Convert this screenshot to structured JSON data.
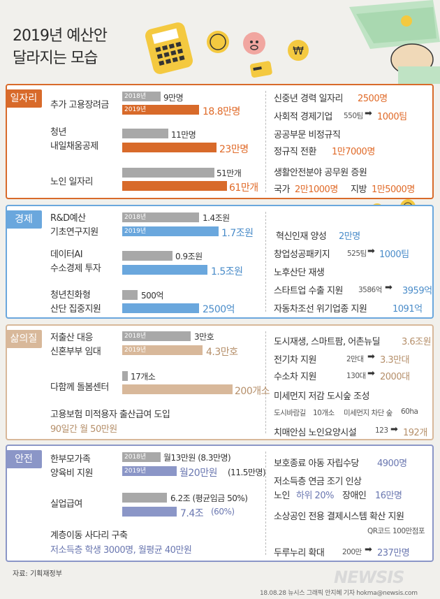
{
  "title": {
    "line1": "2019년 예산안",
    "line2": "달라지는 모습"
  },
  "colors": {
    "orange": "#d86a2a",
    "blue": "#6aa7dd",
    "tan": "#d8b89a",
    "navy": "#8b96c7",
    "gray": "#a8a8a8"
  },
  "chart_data": {
    "type": "bar",
    "title": "2019년 예산안 달라지는 모습",
    "sections": [
      {
        "name": "일자리",
        "left": [
          {
            "label": "추가 고용장려금",
            "series": [
              {
                "name": "2018년",
                "value": 9,
                "unit": "만명",
                "text": "9만명"
              },
              {
                "name": "2019년",
                "value": 18.8,
                "unit": "만명",
                "text": "18.8만명"
              }
            ]
          },
          {
            "label": "청년 내일채움공제",
            "series": [
              {
                "name": "2018년",
                "value": 11,
                "unit": "만명",
                "text": "11만명"
              },
              {
                "name": "2019년",
                "value": 23,
                "unit": "만명",
                "text": "23만명"
              }
            ]
          },
          {
            "label": "노인 일자리",
            "series": [
              {
                "name": "2018년",
                "value": 51,
                "unit": "만개",
                "text": "51만개"
              },
              {
                "name": "2019년",
                "value": 61,
                "unit": "만개",
                "text": "61만개"
              }
            ]
          }
        ]
      },
      {
        "name": "경제",
        "left": [
          {
            "label": "R&D예산 기초연구지원",
            "series": [
              {
                "name": "2018년",
                "value": 1.4,
                "unit": "조원",
                "text": "1.4조원"
              },
              {
                "name": "2019년",
                "value": 1.7,
                "unit": "조원",
                "text": "1.7조원"
              }
            ]
          },
          {
            "label": "데이터AI 수소경제 투자",
            "series": [
              {
                "name": "2018년",
                "value": 0.9,
                "unit": "조원",
                "text": "0.9조원"
              },
              {
                "name": "2019년",
                "value": 1.5,
                "unit": "조원",
                "text": "1.5조원"
              }
            ]
          },
          {
            "label": "청년친화형 산단 집중지원",
            "series": [
              {
                "name": "2018년",
                "value": 500,
                "unit": "억",
                "text": "500억"
              },
              {
                "name": "2019년",
                "value": 2500,
                "unit": "억",
                "text": "2500억"
              }
            ]
          }
        ]
      },
      {
        "name": "삶의질",
        "left": [
          {
            "label": "저출산 대응 신혼부부 임대",
            "series": [
              {
                "name": "2018년",
                "value": 3,
                "unit": "만호",
                "text": "3만호"
              },
              {
                "name": "2019년",
                "value": 4.3,
                "unit": "만호",
                "text": "4.3만호"
              }
            ]
          },
          {
            "label": "다함께 돌봄센터",
            "series": [
              {
                "name": "2018년",
                "value": 17,
                "unit": "개소",
                "text": "17개소"
              },
              {
                "name": "2019년",
                "value": 200,
                "unit": "개소",
                "text": "200개소"
              }
            ]
          }
        ]
      },
      {
        "name": "안전",
        "left": [
          {
            "label": "한부모가족 양육비 지원",
            "series": [
              {
                "name": "2018년",
                "value": 13,
                "unit": "만원",
                "text": "월13만원 (8.3만명)"
              },
              {
                "name": "2019년",
                "value": 20,
                "unit": "만원",
                "text": "월20만원 (11.5만명)"
              }
            ]
          },
          {
            "label": "실업급여",
            "series": [
              {
                "name": "2018년",
                "value": 6.2,
                "unit": "조",
                "text": "6.2조 (평균임금 50%)"
              },
              {
                "name": "2019년",
                "value": 7.4,
                "unit": "조",
                "text": "7.4조 (60%)"
              }
            ]
          }
        ]
      }
    ]
  },
  "sections": {
    "s1": {
      "tag": "일자리",
      "left": {
        "r1": {
          "label": "추가 고용장려금",
          "y18": "2018년",
          "y19": "2019년",
          "v18": "9만명",
          "v19": "18.8만명"
        },
        "r2": {
          "label1": "청년",
          "label2": "내일채움공제",
          "v18": "11만명",
          "v19": "23만명"
        },
        "r3": {
          "label": "노인 일자리",
          "v18": "51만개",
          "v19": "61만개"
        }
      },
      "right": {
        "a1": "신중년 경력 일자리",
        "a2": "2500명",
        "b1": "사회적 경제기업",
        "b2": "550팀",
        "b3": "1000팀",
        "c1": "공공부문 비정규직",
        "c2": "정규직 전환",
        "c3": "1만7000명",
        "d1": "생활안전분야 공무원 증원",
        "d2": "국가",
        "d3": "2만1000명",
        "d4": "지방",
        "d5": "1만5000명"
      }
    },
    "s2": {
      "tag": "경제",
      "left": {
        "r1": {
          "label1": "R&D예산",
          "label2": "기초연구지원",
          "y18": "2018년",
          "y19": "2019년",
          "v18": "1.4조원",
          "v19": "1.7조원"
        },
        "r2": {
          "label1": "데이터AI",
          "label2": "수소경제 투자",
          "v18": "0.9조원",
          "v19": "1.5조원"
        },
        "r3": {
          "label1": "청년친화형",
          "label2": "산단 집중지원",
          "v18": "500억",
          "v19": "2500억"
        }
      },
      "right": {
        "a1": "혁신인재 양성",
        "a2": "2만명",
        "b1": "창업성공패키지",
        "b2": "525팀",
        "b3": "1000팀",
        "c1": "노후산단 재생",
        "d1": "스타트업 수출 지원",
        "d2": "3586억",
        "d3": "3959억",
        "e1": "자동차조선 위기업종 지원",
        "e2": "1091억"
      }
    },
    "s3": {
      "tag": "삶의질",
      "left": {
        "r1": {
          "label1": "저출산 대응",
          "label2": "신혼부부 임대",
          "y18": "2018년",
          "y19": "2019년",
          "v18": "3만호",
          "v19": "4.3만호"
        },
        "r2": {
          "label": "다함께 돌봄센터",
          "v18": "17개소",
          "v19": "200개소"
        },
        "r3": {
          "label1": "고용보험 미적용자 출산급여 도입",
          "label2": "90일간 월 50만원"
        }
      },
      "right": {
        "a1": "도시재생, 스마트팜, 어촌뉴딜",
        "a2": "3.6조원",
        "b1": "전기차 지원",
        "b2": "2만대",
        "b3": "3.3만대",
        "c1": "수소차 지원",
        "c2": "130대",
        "c3": "2000대",
        "d1": "미세먼지 저감 도시숲 조성",
        "e1": "도시바람길",
        "e2": "10개소",
        "e3": "미세먼지 차단 숲",
        "e4": "60ha",
        "f1": "치매안심 노인요양시설",
        "f2": "123",
        "f3": "192개"
      }
    },
    "s4": {
      "tag": "안전",
      "left": {
        "r1": {
          "label1": "한부모가족",
          "label2": "양육비 지원",
          "y18": "2018년",
          "y19": "2019년",
          "v18": "월13만원 (8.3만명)",
          "v19a": "월20만원",
          "v19b": "(11.5만명)"
        },
        "r2": {
          "label": "실업급여",
          "v18": "6.2조 (평균임금 50%)",
          "v19a": "7.4조",
          "v19b": "(60%)"
        },
        "r3": {
          "label1": "계층이동 사다리 구축",
          "label2": "저소득층 학생 3000명, 월평균 40만원"
        }
      },
      "right": {
        "a1": "보호종료 아동 자립수당",
        "a2": "4900명",
        "b1": "저소득층 연금 조기 인상",
        "c1": "노인",
        "c2": "하위 20%",
        "c3": "장애인",
        "c4": "16만명",
        "d1": "소상공인 전용 결제시스템 확산 지원",
        "e1": "QR코드",
        "e2": "100만점포",
        "f1": "두루누리 확대",
        "f2": "200만",
        "f3": "237만명"
      }
    }
  },
  "arrow": "➡",
  "footer": {
    "source": "자료: 기획재정부",
    "credit": "18.08.28 뉴시스 그래픽 안지혜 기자 hokma@newsis.com",
    "logo": "NEWSIS"
  }
}
